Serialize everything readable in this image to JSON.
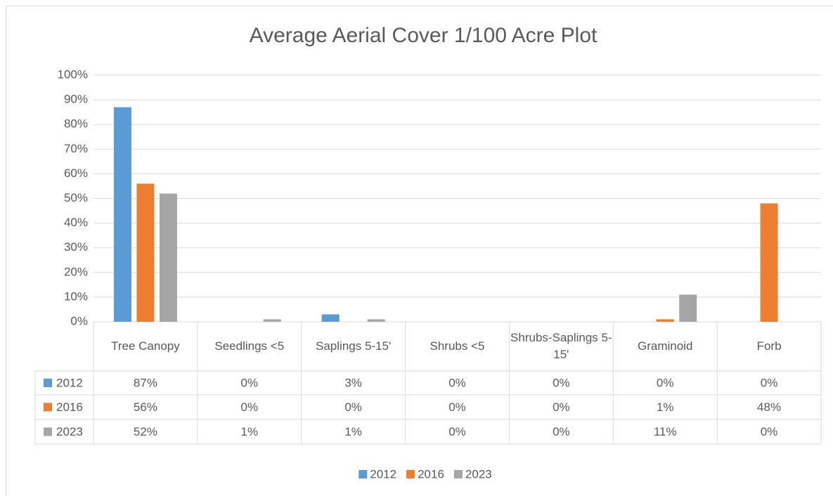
{
  "chart_data": {
    "type": "bar",
    "title": "Average Aerial Cover 1/100 Acre Plot",
    "categories": [
      "Tree Canopy",
      "Seedlings <5",
      "Saplings 5-15'",
      "Shrubs <5",
      "Shrubs-Saplings 5-15'",
      "Graminoid",
      "Forb"
    ],
    "series": [
      {
        "name": "2012",
        "color": "#5b9bd5",
        "values": [
          87,
          0,
          3,
          0,
          0,
          0,
          0
        ],
        "value_labels": [
          "87%",
          "0%",
          "3%",
          "0%",
          "0%",
          "0%",
          "0%"
        ]
      },
      {
        "name": "2016",
        "color": "#ed7d31",
        "values": [
          56,
          0,
          0,
          0,
          0,
          1,
          48
        ],
        "value_labels": [
          "56%",
          "0%",
          "0%",
          "0%",
          "0%",
          "1%",
          "48%"
        ]
      },
      {
        "name": "2023",
        "color": "#a5a5a5",
        "values": [
          52,
          1,
          1,
          0,
          0,
          11,
          0
        ],
        "value_labels": [
          "52%",
          "1%",
          "1%",
          "0%",
          "0%",
          "11%",
          "0%"
        ]
      }
    ],
    "ylim": [
      0,
      100
    ],
    "yticks": [
      {
        "value": 0,
        "label": "0%"
      },
      {
        "value": 10,
        "label": "10%"
      },
      {
        "value": 20,
        "label": "20%"
      },
      {
        "value": 30,
        "label": "30%"
      },
      {
        "value": 40,
        "label": "40%"
      },
      {
        "value": 50,
        "label": "50%"
      },
      {
        "value": 60,
        "label": "60%"
      },
      {
        "value": 70,
        "label": "70%"
      },
      {
        "value": 80,
        "label": "80%"
      },
      {
        "value": 90,
        "label": "90%"
      },
      {
        "value": 100,
        "label": "100%"
      }
    ],
    "grid": true,
    "legend": "bottom"
  }
}
